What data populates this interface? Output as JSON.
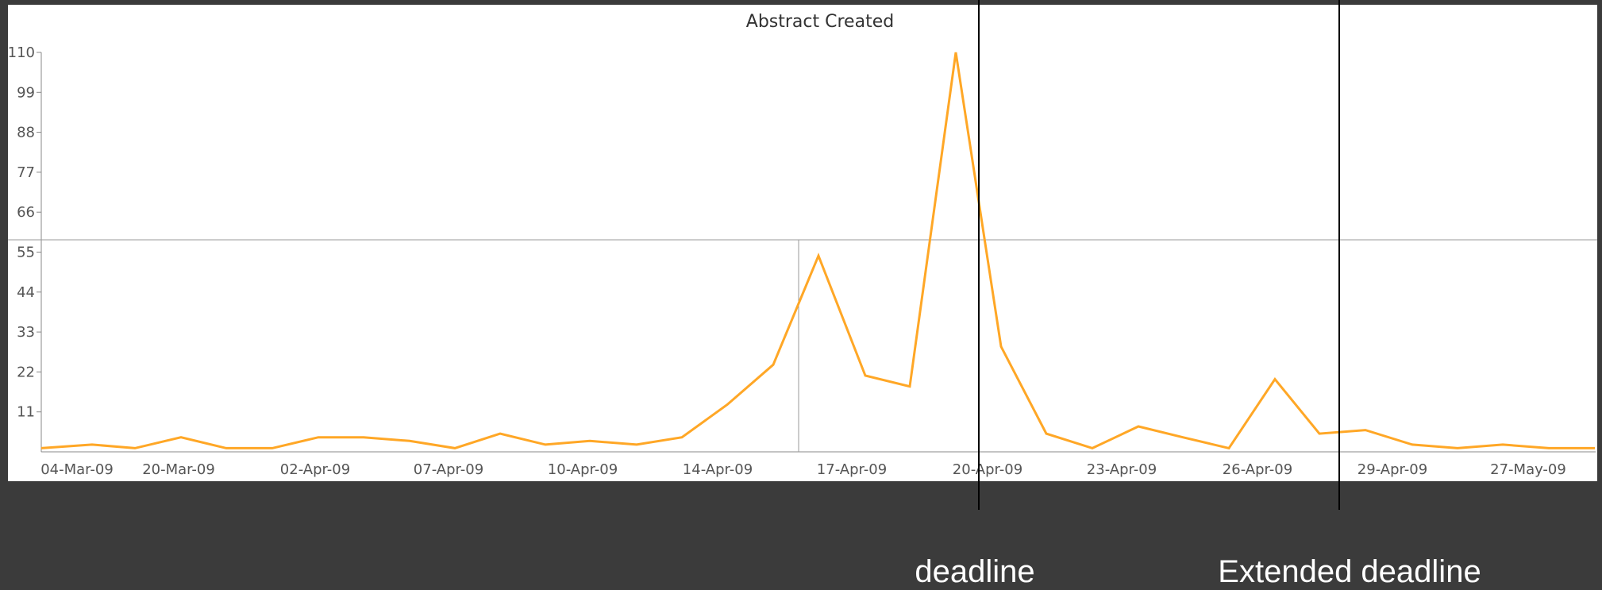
{
  "chart_data": {
    "type": "line",
    "title": "Abstract Created",
    "xlabel": "",
    "ylabel": "",
    "ylim": [
      0,
      110
    ],
    "y_ticks": [
      11,
      22,
      33,
      44,
      55,
      66,
      77,
      88,
      99,
      110
    ],
    "x_tick_labels": [
      "04-Mar-09",
      "20-Mar-09",
      "02-Apr-09",
      "07-Apr-09",
      "10-Apr-09",
      "14-Apr-09",
      "17-Apr-09",
      "20-Apr-09",
      "23-Apr-09",
      "26-Apr-09",
      "29-Apr-09",
      "27-May-09"
    ],
    "series": [
      {
        "color": "#ffa726",
        "values": [
          1,
          2,
          1,
          4,
          1,
          1,
          4,
          4,
          3,
          1,
          5,
          2,
          3,
          2,
          4,
          13,
          24,
          54,
          21,
          18,
          110,
          29,
          5,
          1,
          7,
          4,
          1,
          20,
          5,
          6,
          2,
          1,
          2,
          1,
          1
        ]
      }
    ],
    "grid": false,
    "crosshair": true
  },
  "annotations": [
    {
      "label": "deadline"
    },
    {
      "label": "Extended deadline"
    }
  ]
}
